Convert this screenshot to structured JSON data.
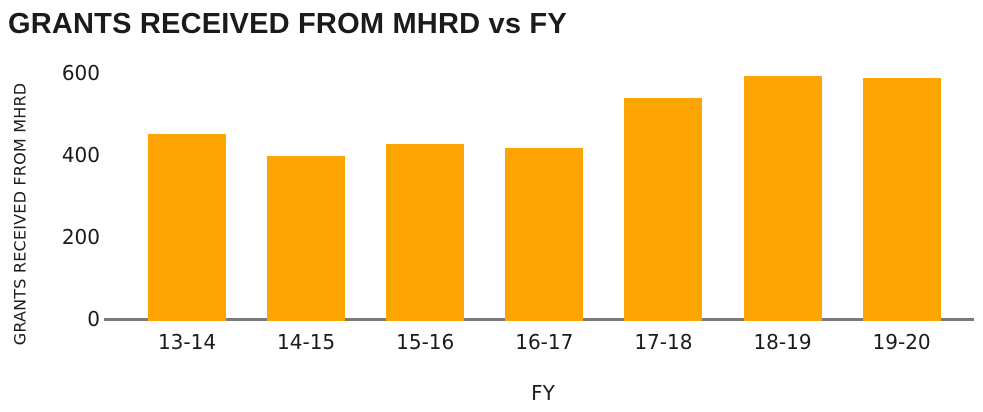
{
  "chart_data": {
    "type": "bar",
    "title": "GRANTS RECEIVED FROM MHRD vs FY",
    "xlabel": "FY",
    "ylabel": "GRANTS RECEIVED FROM MHRD",
    "categories": [
      "13-14",
      "14-15",
      "15-16",
      "16-17",
      "17-18",
      "18-19",
      "19-20"
    ],
    "values": [
      450,
      395,
      425,
      415,
      535,
      588,
      582
    ],
    "yticks": [
      0,
      200,
      400,
      600
    ],
    "ylim": [
      0,
      600
    ],
    "grid": false,
    "legend": "none",
    "colors": {
      "bar": "#FFA405",
      "axis": "#7A7A7A",
      "text": "#1B1B1B",
      "background": "#FFFFFF"
    }
  }
}
